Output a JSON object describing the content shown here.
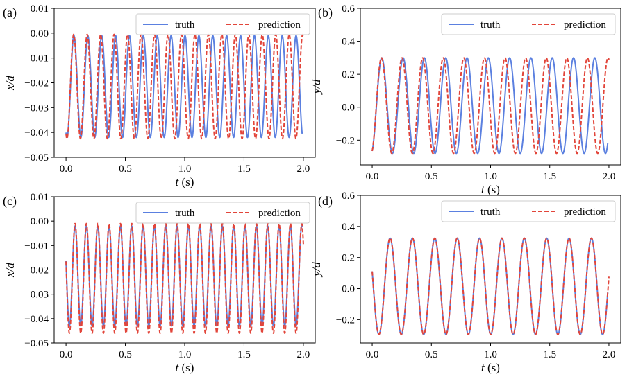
{
  "colors": {
    "truth": "#5b80e0",
    "prediction": "#e2453a",
    "frame": "#000000",
    "legend_border": "#cccccc"
  },
  "chart_data": [
    {
      "type": "line",
      "panel_label": "(a)",
      "xlabel_var": "t",
      "xlabel_unit": " (s)",
      "ylabel": "x/d",
      "xlim": [
        -0.1,
        2.1
      ],
      "ylim": [
        -0.05,
        0.01
      ],
      "xticks": [
        0.0,
        0.5,
        1.0,
        1.5,
        2.0
      ],
      "xtick_labels": [
        "0.0",
        "0.5",
        "1.0",
        "1.5",
        "2.0"
      ],
      "yticks": [
        -0.05,
        -0.04,
        -0.03,
        -0.02,
        -0.01,
        0.0,
        0.01
      ],
      "ytick_labels": [
        "−0.05",
        "−0.04",
        "−0.03",
        "−0.02",
        "−0.01",
        "0.00",
        "0.01"
      ],
      "legend": "top-right",
      "grid": false,
      "series": [
        {
          "name": "truth",
          "style": "solid",
          "signal": {
            "t0": 0.0,
            "t1": 1.99,
            "period": 0.117,
            "mid": -0.0215,
            "amp": 0.0205,
            "phase": 0.43,
            "drift": 0.0
          }
        },
        {
          "name": "prediction",
          "style": "dashed",
          "signal": {
            "t0": 0.0,
            "t1": 2.0,
            "period": 0.1135,
            "mid": -0.0215,
            "amp": 0.021,
            "phase": 0.43,
            "drift": 0.0
          }
        }
      ]
    },
    {
      "type": "line",
      "panel_label": "(b)",
      "xlabel_var": "t",
      "xlabel_unit": " (s)",
      "ylabel": "y/d",
      "xlim": [
        -0.1,
        2.1
      ],
      "ylim": [
        -0.35,
        0.6
      ],
      "xticks": [
        0.0,
        0.5,
        1.0,
        1.5,
        2.0
      ],
      "xtick_labels": [
        "0.0",
        "0.5",
        "1.0",
        "1.5",
        "2.0"
      ],
      "yticks": [
        -0.2,
        0.0,
        0.2,
        0.4,
        0.6
      ],
      "ytick_labels": [
        "−0.2",
        "0.0",
        "0.2",
        "0.4",
        "0.6"
      ],
      "legend": "top-right",
      "grid": false,
      "series": [
        {
          "name": "truth",
          "style": "solid",
          "signal": {
            "t0": 0.0,
            "t1": 1.99,
            "period": 0.18,
            "mid": 0.01,
            "amp": 0.29,
            "phase": 0.55,
            "drift": 0.0
          }
        },
        {
          "name": "prediction",
          "style": "dashed",
          "signal": {
            "t0": 0.0,
            "t1": 2.0,
            "period": 0.174,
            "mid": 0.01,
            "amp": 0.29,
            "phase": 0.55,
            "drift": 0.0
          }
        }
      ]
    },
    {
      "type": "line",
      "panel_label": "(c)",
      "xlabel_var": "t",
      "xlabel_unit": " (s)",
      "ylabel": "x/d",
      "xlim": [
        -0.1,
        2.1
      ],
      "ylim": [
        -0.05,
        0.01
      ],
      "xticks": [
        0.0,
        0.5,
        1.0,
        1.5,
        2.0
      ],
      "xtick_labels": [
        "0.0",
        "0.5",
        "1.0",
        "1.5",
        "2.0"
      ],
      "yticks": [
        -0.05,
        -0.04,
        -0.03,
        -0.02,
        -0.01,
        0.0,
        0.01
      ],
      "ytick_labels": [
        "−0.05",
        "−0.04",
        "−0.03",
        "−0.02",
        "−0.01",
        "0.00",
        "0.01"
      ],
      "legend": "top-right",
      "grid": false,
      "series": [
        {
          "name": "truth",
          "style": "solid",
          "signal": {
            "t0": 0.0,
            "t1": 1.99,
            "period": 0.0955,
            "mid": -0.0225,
            "amp": 0.0205,
            "phase": 0.2,
            "drift": 0.0
          }
        },
        {
          "name": "prediction",
          "style": "dashed",
          "signal": {
            "t0": 0.0,
            "t1": 2.0,
            "period": 0.0955,
            "mid": -0.0235,
            "amp": 0.0225,
            "phase": 0.2,
            "drift": 0.0
          }
        }
      ]
    },
    {
      "type": "line",
      "panel_label": "(d)",
      "xlabel_var": "t",
      "xlabel_unit": " (s)",
      "ylabel": "y/d",
      "xlim": [
        -0.1,
        2.1
      ],
      "ylim": [
        -0.35,
        0.6
      ],
      "xticks": [
        0.0,
        0.5,
        1.0,
        1.5,
        2.0
      ],
      "xtick_labels": [
        "0.0",
        "0.5",
        "1.0",
        "1.5",
        "2.0"
      ],
      "yticks": [
        -0.2,
        0.0,
        0.2,
        0.4,
        0.6
      ],
      "ytick_labels": [
        "−0.2",
        "0.0",
        "0.2",
        "0.4",
        "0.6"
      ],
      "legend": "top-right",
      "grid": false,
      "series": [
        {
          "name": "truth",
          "style": "solid",
          "signal": {
            "t0": 0.0,
            "t1": 1.99,
            "period": 0.189,
            "mid": 0.015,
            "amp": 0.31,
            "phase": 0.2,
            "drift": 0.0
          }
        },
        {
          "name": "prediction",
          "style": "dashed",
          "signal": {
            "t0": 0.0,
            "t1": 2.0,
            "period": 0.189,
            "mid": 0.015,
            "amp": 0.31,
            "phase": 0.2,
            "drift": 0.0
          }
        }
      ]
    }
  ]
}
